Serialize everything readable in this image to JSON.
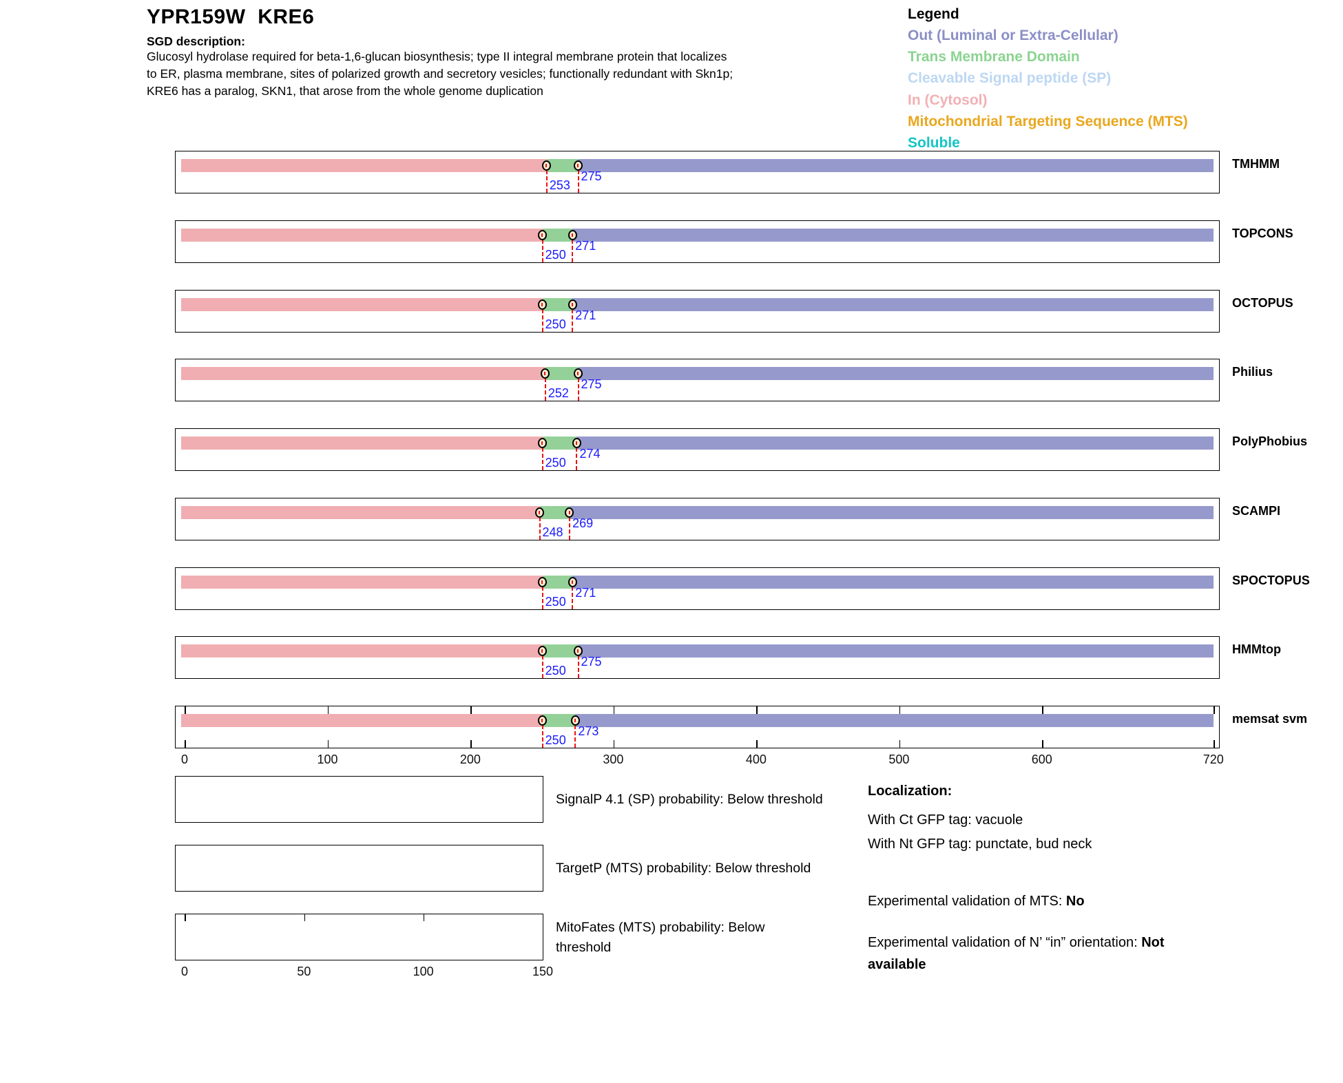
{
  "header": {
    "title": "YPR159W  KRE6",
    "sgd_label": "SGD description:",
    "description_lines": [
      "Glucosyl hydrolase required for beta-1,6-glucan biosynthesis; type II integral membrane protein that localizes",
      "to ER, plasma membrane, sites of polarized growth and secretory vesicles; functionally redundant with Skn1p;",
      "KRE6 has a paralog, SKN1, that arose from the whole genome duplication"
    ]
  },
  "legend": {
    "title": "Legend",
    "items": [
      {
        "label": "Out (Luminal or Extra-Cellular)",
        "color": "#8b8fc6"
      },
      {
        "label": "Trans Membrane Domain",
        "color": "#8bd491"
      },
      {
        "label": "Cleavable Signal peptide (SP)",
        "color": "#bdd7f2"
      },
      {
        "label": "In (Cytosol)",
        "color": "#f2b0b4"
      },
      {
        "label": "Mitochondrial Targeting Sequence (MTS)",
        "color": "#e9a71f"
      },
      {
        "label": "Soluble",
        "color": "#14c5c5"
      }
    ]
  },
  "chart_data": {
    "type": "topology-tracks",
    "xlim": [
      0,
      720
    ],
    "x_ticks": [
      0,
      100,
      200,
      300,
      400,
      500,
      600,
      720
    ],
    "segment_colors": {
      "in_cytosol": "#f0aeb2",
      "trans_membrane": "#94d198",
      "out_luminal": "#9699cc"
    },
    "marker_fill": "#fcecd0",
    "boundary_line_color": "#ee1111",
    "boundary_number_color": "#1a1aff",
    "tracks": [
      {
        "name": "TMHMM",
        "in_region": [
          0,
          253
        ],
        "tm_region": [
          253,
          275
        ],
        "out_region": [
          275,
          720
        ],
        "boundary_labels": [
          "253",
          "275"
        ]
      },
      {
        "name": "TOPCONS",
        "in_region": [
          0,
          250
        ],
        "tm_region": [
          250,
          271
        ],
        "out_region": [
          271,
          720
        ],
        "boundary_labels": [
          "250",
          "271"
        ]
      },
      {
        "name": "OCTOPUS",
        "in_region": [
          0,
          250
        ],
        "tm_region": [
          250,
          271
        ],
        "out_region": [
          271,
          720
        ],
        "boundary_labels": [
          "250",
          "271"
        ]
      },
      {
        "name": "Philius",
        "in_region": [
          0,
          252
        ],
        "tm_region": [
          252,
          275
        ],
        "out_region": [
          275,
          720
        ],
        "boundary_labels": [
          "252",
          "275"
        ]
      },
      {
        "name": "PolyPhobius",
        "in_region": [
          0,
          250
        ],
        "tm_region": [
          250,
          274
        ],
        "out_region": [
          274,
          720
        ],
        "boundary_labels": [
          "250",
          "274"
        ]
      },
      {
        "name": "SCAMPI",
        "in_region": [
          0,
          248
        ],
        "tm_region": [
          248,
          269
        ],
        "out_region": [
          269,
          720
        ],
        "boundary_labels": [
          "248",
          "269"
        ]
      },
      {
        "name": "SPOCTOPUS",
        "in_region": [
          0,
          250
        ],
        "tm_region": [
          250,
          271
        ],
        "out_region": [
          271,
          720
        ],
        "boundary_labels": [
          "250",
          "271"
        ]
      },
      {
        "name": "HMMtop",
        "in_region": [
          0,
          250
        ],
        "tm_region": [
          250,
          275
        ],
        "out_region": [
          275,
          720
        ],
        "boundary_labels": [
          "250",
          "275"
        ]
      },
      {
        "name": "memsat svm",
        "in_region": [
          0,
          250
        ],
        "tm_region": [
          250,
          273
        ],
        "out_region": [
          273,
          720
        ],
        "boundary_labels": [
          "250",
          "273"
        ]
      }
    ],
    "probability_panels": [
      {
        "name": "SignalP",
        "label": "SignalP 4.1 (SP) probability: Below threshold",
        "value": "Below threshold",
        "series": []
      },
      {
        "name": "TargetP",
        "label": "TargetP (MTS) probability: Below threshold",
        "value": "Below threshold",
        "series": []
      },
      {
        "name": "MitoFates",
        "label": "MitoFates (MTS) probability: Below threshold",
        "value": "Below threshold",
        "series": [],
        "x_ticks": [
          0,
          50,
          100,
          150
        ]
      }
    ]
  },
  "localization": {
    "heading": "Localization:",
    "ct_line": "With Ct GFP tag: vacuole",
    "nt_line": "With Nt GFP tag: punctate, bud neck",
    "mts_prefix": "Experimental validation of MTS: ",
    "mts_value": "No",
    "orientation_prefix": "Experimental validation of N’ “in” orientation: ",
    "orientation_value": "Not available"
  }
}
